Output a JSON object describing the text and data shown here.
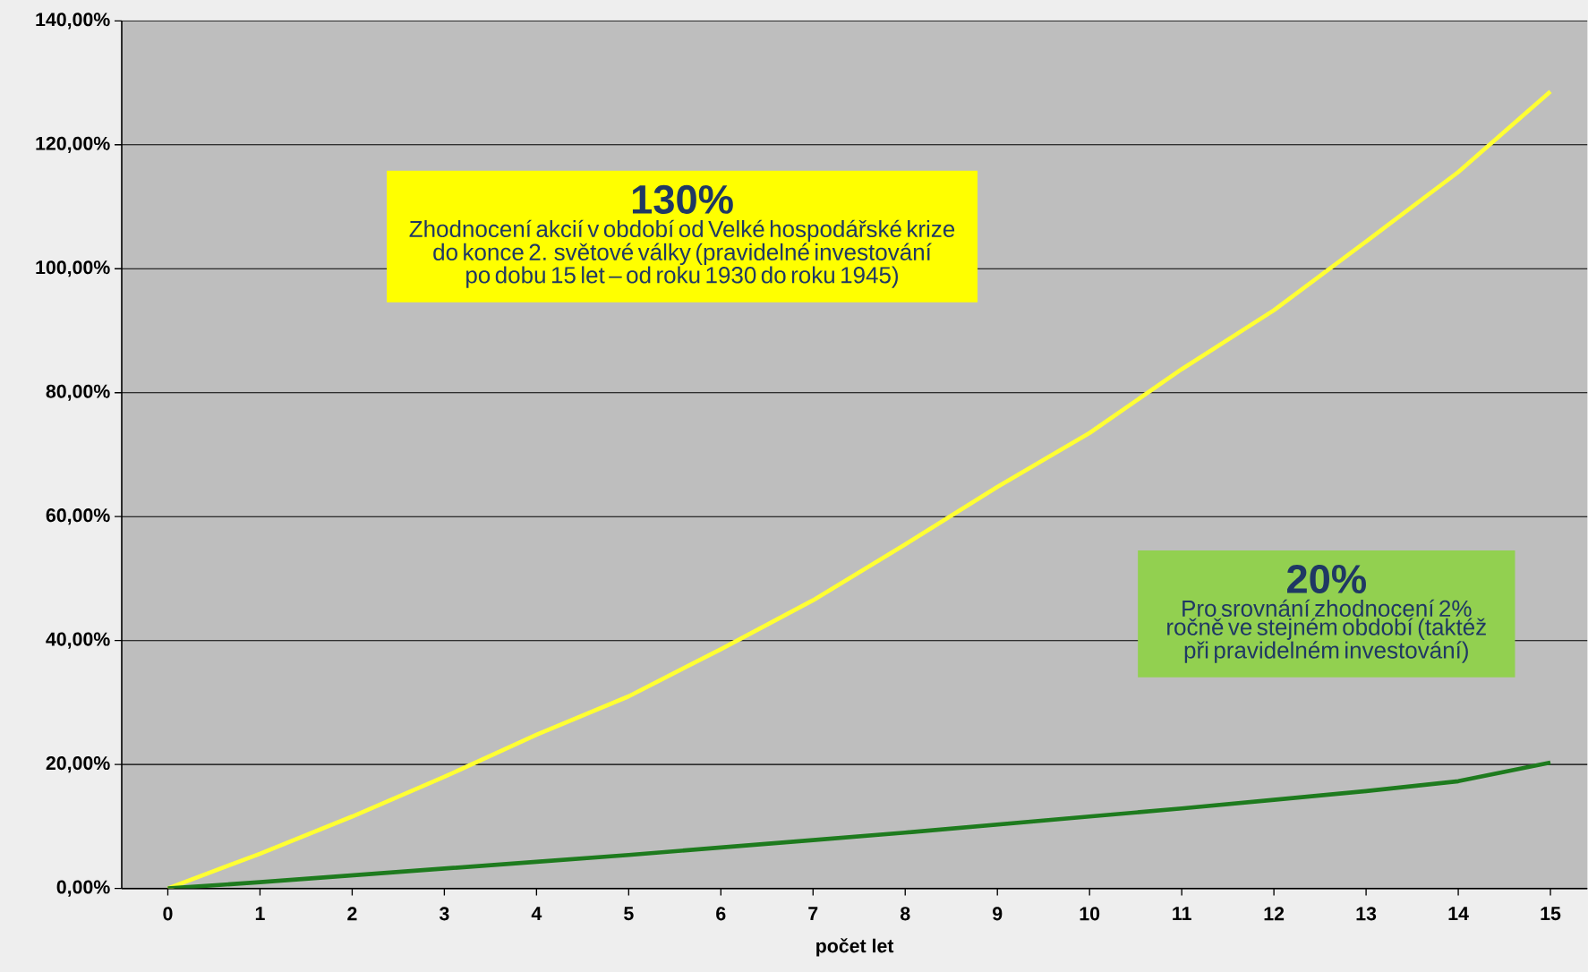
{
  "chart_data": {
    "type": "line",
    "xlabel": "počet let",
    "x": [
      0,
      1,
      2,
      3,
      4,
      5,
      6,
      7,
      8,
      9,
      10,
      11,
      12,
      13,
      14,
      15
    ],
    "series": [
      {
        "color": "#ffff33",
        "values": [
          0,
          5.6,
          11.6,
          18,
          24.8,
          31,
          38.6,
          46.5,
          55.5,
          64.8,
          73.5,
          83.8,
          93.3,
          104.4,
          115.6,
          128.6
        ]
      },
      {
        "color": "#1e7b1e",
        "values": [
          0,
          1,
          2.1,
          3.2,
          4.3,
          5.4,
          6.6,
          7.8,
          9,
          10.3,
          11.6,
          12.9,
          14.3,
          15.7,
          17.3,
          20.3
        ]
      }
    ],
    "xlim": [
      -0.5,
      15.4
    ],
    "ylim": [
      0,
      140
    ],
    "xticks": [
      0,
      1,
      2,
      3,
      4,
      5,
      6,
      7,
      8,
      9,
      10,
      11,
      12,
      13,
      14,
      15
    ],
    "yticks": [
      {
        "value": 0,
        "label": "0,00%"
      },
      {
        "value": 20,
        "label": "20,00%"
      },
      {
        "value": 40,
        "label": "40,00%"
      },
      {
        "value": 60,
        "label": "60,00%"
      },
      {
        "value": 80,
        "label": "80,00%"
      },
      {
        "value": 100,
        "label": "100,00%"
      },
      {
        "value": 120,
        "label": "120,00%"
      },
      {
        "value": 140,
        "label": "140,00%"
      }
    ],
    "grid": "y",
    "marker": "none",
    "line_style": "solid",
    "annotations": [
      "130%",
      "Zhodnocení akcií v období od Velké hospodářské krize do konce 2. světové války (pravidelné investování po dobu 15 let – od roku 1930 do roku 1945)",
      "20%",
      "Pro srovnání zhodnocení 2% ročně ve stejném období (taktéž při pravidelném investování)"
    ]
  }
}
